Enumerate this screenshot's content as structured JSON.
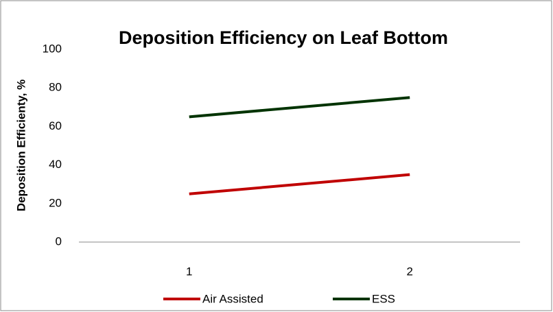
{
  "chart_data": {
    "type": "line",
    "title": "Deposition Efficiency on Leaf Bottom",
    "y_axis_label": "Deposition Efficienty, %",
    "categories": [
      "1",
      "2"
    ],
    "series": [
      {
        "name": "Air Assisted",
        "color": "#c00000",
        "values": [
          25,
          35
        ]
      },
      {
        "name": "ESS",
        "color": "#003300",
        "values": [
          65,
          75
        ]
      }
    ],
    "ylim": [
      0,
      100
    ],
    "yticks": [
      0,
      20,
      40,
      60,
      80,
      100
    ],
    "grid": false,
    "legend": "bottom"
  }
}
